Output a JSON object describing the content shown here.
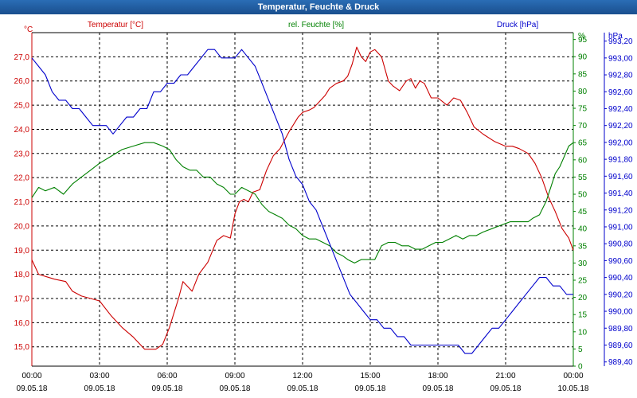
{
  "window": {
    "title": "Temperatur, Feuchte & Druck"
  },
  "colors": {
    "temperature": "#cc0000",
    "humidity": "#008000",
    "pressure": "#0000cc",
    "grid": "#000000"
  },
  "chart_data": {
    "type": "line",
    "title": "Temperatur, Feuchte & Druck",
    "grid": true,
    "x_ticks": [
      {
        "time": "00:00",
        "date": "09.05.18"
      },
      {
        "time": "03:00",
        "date": "09.05.18"
      },
      {
        "time": "06:00",
        "date": "09.05.18"
      },
      {
        "time": "09:00",
        "date": "09.05.18"
      },
      {
        "time": "12:00",
        "date": "09.05.18"
      },
      {
        "time": "15:00",
        "date": "09.05.18"
      },
      {
        "time": "18:00",
        "date": "09.05.18"
      },
      {
        "time": "21:00",
        "date": "09.05.18"
      },
      {
        "time": "00:00",
        "date": "10.05.18"
      }
    ],
    "xlim_hours": [
      0,
      24
    ],
    "axes": {
      "temperature": {
        "label": "Temperatur [°C]",
        "unit": "°C",
        "side": "left",
        "ylim": [
          14.2,
          28.0
        ],
        "ticks": [
          "15,0",
          "16,0",
          "17,0",
          "18,0",
          "19,0",
          "20,0",
          "21,0",
          "22,0",
          "23,0",
          "24,0",
          "25,0",
          "26,0",
          "27,0"
        ]
      },
      "humidity": {
        "label": "rel. Feuchte [%]",
        "unit": "%",
        "side": "right",
        "ylim": [
          0,
          97
        ],
        "ticks": [
          "0",
          "5",
          "10",
          "15",
          "20",
          "25",
          "30",
          "35",
          "40",
          "45",
          "50",
          "55",
          "60",
          "65",
          "70",
          "75",
          "80",
          "85",
          "90",
          "95"
        ]
      },
      "pressure": {
        "label": "Druck [hPa]",
        "unit": "hPa",
        "side": "right",
        "ylim": [
          989.35,
          993.3
        ],
        "ticks": [
          "989,40",
          "989,60",
          "989,80",
          "990,00",
          "990,20",
          "990,40",
          "990,60",
          "990,80",
          "991,00",
          "991,20",
          "991,40",
          "991,60",
          "991,80",
          "992,00",
          "992,20",
          "992,40",
          "992,60",
          "992,80",
          "993,00",
          "993,20"
        ]
      }
    },
    "series": [
      {
        "name": "Temperatur [°C]",
        "axis": "temperature",
        "color": "#cc0000",
        "x": [
          0,
          0.3,
          1,
          1.5,
          1.8,
          2.2,
          2.6,
          3,
          3.5,
          4,
          4.5,
          5,
          5.5,
          5.8,
          6.1,
          6.5,
          6.7,
          6.9,
          7.1,
          7.4,
          7.8,
          8.2,
          8.5,
          8.8,
          9,
          9.2,
          9.4,
          9.6,
          9.8,
          10.1,
          10.4,
          10.7,
          11,
          11.4,
          11.8,
          12,
          12.3,
          12.5,
          12.7,
          13,
          13.2,
          13.5,
          13.8,
          14,
          14.2,
          14.4,
          14.6,
          14.8,
          15,
          15.2,
          15.5,
          15.8,
          16,
          16.3,
          16.6,
          16.8,
          17,
          17.2,
          17.4,
          17.7,
          18,
          18.4,
          18.7,
          19,
          19.3,
          19.6,
          20,
          20.5,
          21,
          21.3,
          21.6,
          22,
          22.3,
          22.6,
          22.9,
          23.2,
          23.5,
          23.8,
          24
        ],
        "y": [
          18.6,
          18.0,
          17.8,
          17.7,
          17.3,
          17.1,
          17.0,
          16.9,
          16.3,
          15.8,
          15.4,
          14.9,
          14.9,
          15.1,
          15.8,
          17.0,
          17.7,
          17.5,
          17.3,
          18.0,
          18.5,
          19.4,
          19.6,
          19.5,
          20.5,
          21.0,
          21.1,
          21.0,
          21.4,
          21.5,
          22.3,
          22.9,
          23.2,
          23.9,
          24.5,
          24.7,
          24.8,
          24.9,
          25.1,
          25.4,
          25.7,
          25.9,
          26.0,
          26.2,
          26.7,
          27.4,
          27.0,
          26.8,
          27.2,
          27.3,
          27.0,
          26.0,
          25.8,
          25.6,
          26.0,
          26.1,
          25.7,
          26.0,
          25.9,
          25.3,
          25.3,
          25.0,
          25.3,
          25.2,
          24.7,
          24.1,
          23.8,
          23.5,
          23.3,
          23.3,
          23.2,
          23.0,
          22.6,
          22.0,
          21.2,
          20.6,
          19.9,
          19.5,
          19.0
        ]
      },
      {
        "name": "rel. Feuchte [%]",
        "axis": "humidity",
        "color": "#008000",
        "x": [
          0,
          0.3,
          0.6,
          1,
          1.4,
          1.8,
          2.2,
          2.6,
          3,
          3.5,
          4,
          4.5,
          5,
          5.4,
          5.8,
          6.1,
          6.4,
          6.7,
          7,
          7.3,
          7.6,
          7.9,
          8.2,
          8.5,
          8.8,
          9,
          9.3,
          9.6,
          9.9,
          10.2,
          10.5,
          10.8,
          11.1,
          11.4,
          11.7,
          12,
          12.3,
          12.6,
          12.9,
          13.2,
          13.5,
          13.8,
          14,
          14.3,
          14.6,
          14.9,
          15.2,
          15.5,
          15.8,
          16.1,
          16.4,
          16.7,
          17,
          17.3,
          17.6,
          17.9,
          18.2,
          18.5,
          18.8,
          19.1,
          19.4,
          19.7,
          20,
          20.4,
          20.8,
          21.2,
          21.6,
          22,
          22.2,
          22.5,
          22.8,
          23,
          23.2,
          23.4,
          23.6,
          23.8,
          24
        ],
        "y": [
          49,
          52,
          51,
          52,
          50,
          53,
          55,
          57,
          59,
          61,
          63,
          64,
          65,
          65,
          64,
          63,
          60,
          58,
          57,
          57,
          55,
          55,
          53,
          52,
          50,
          50,
          52,
          51,
          50,
          47,
          45,
          44,
          43,
          41,
          40,
          38,
          37,
          37,
          36,
          35,
          33,
          32,
          31,
          30,
          31,
          31,
          31,
          35,
          36,
          36,
          35,
          35,
          34,
          34,
          35,
          36,
          36,
          37,
          38,
          37,
          38,
          38,
          39,
          40,
          41,
          42,
          42,
          42,
          43,
          44,
          48,
          52,
          56,
          58,
          61,
          64,
          65
        ]
      },
      {
        "name": "Druck [hPa]",
        "axis": "pressure",
        "color": "#0000cc",
        "x": [
          0,
          0.3,
          0.6,
          0.9,
          1.2,
          1.5,
          1.8,
          2.1,
          2.4,
          2.7,
          3,
          3.3,
          3.6,
          3.9,
          4.2,
          4.5,
          4.8,
          5.1,
          5.4,
          5.7,
          6,
          6.3,
          6.6,
          6.9,
          7.2,
          7.5,
          7.8,
          8.1,
          8.4,
          8.7,
          9,
          9.3,
          9.6,
          9.9,
          10.2,
          10.5,
          10.8,
          11.1,
          11.4,
          11.7,
          12,
          12.3,
          12.6,
          12.9,
          13.2,
          13.5,
          13.8,
          14.1,
          14.4,
          14.7,
          15,
          15.3,
          15.6,
          15.9,
          16.2,
          16.5,
          16.8,
          17.1,
          17.4,
          17.7,
          18,
          18.3,
          18.6,
          18.9,
          19.2,
          19.5,
          19.8,
          20.1,
          20.4,
          20.7,
          21,
          21.3,
          21.6,
          21.9,
          22.2,
          22.5,
          22.8,
          23.1,
          23.4,
          23.7,
          24
        ],
        "y": [
          993.0,
          992.9,
          992.8,
          992.6,
          992.5,
          992.5,
          992.4,
          992.4,
          992.3,
          992.2,
          992.2,
          992.2,
          992.1,
          992.2,
          992.3,
          992.3,
          992.4,
          992.4,
          992.6,
          992.6,
          992.7,
          992.7,
          992.8,
          992.8,
          992.9,
          993.0,
          993.1,
          993.1,
          993.0,
          993.0,
          993.0,
          993.1,
          993.0,
          992.9,
          992.7,
          992.5,
          992.3,
          992.1,
          991.8,
          991.6,
          991.5,
          991.3,
          991.2,
          991.0,
          990.8,
          990.6,
          990.4,
          990.2,
          990.1,
          990.0,
          989.9,
          989.9,
          989.8,
          989.8,
          989.7,
          989.7,
          989.6,
          989.6,
          989.6,
          989.6,
          989.6,
          989.6,
          989.6,
          989.6,
          989.5,
          989.5,
          989.6,
          989.7,
          989.8,
          989.8,
          989.9,
          990.0,
          990.1,
          990.2,
          990.3,
          990.4,
          990.4,
          990.3,
          990.3,
          990.2,
          990.2
        ]
      }
    ]
  }
}
